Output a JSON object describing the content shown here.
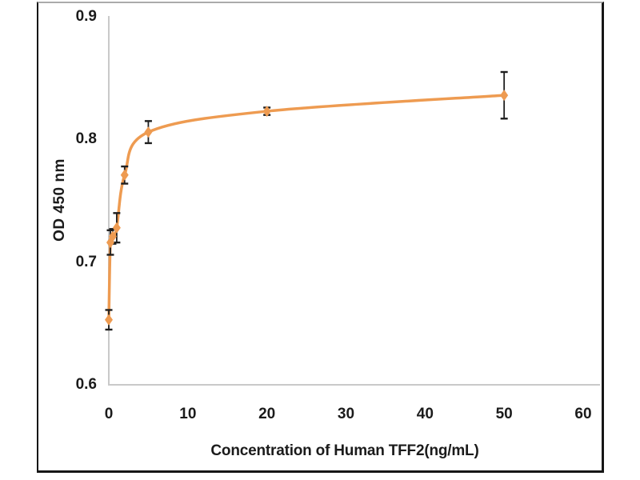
{
  "figure": {
    "description": "Sandwich ELISA standard curve plot for Human TFF2",
    "background": "#ffffff"
  },
  "chart_data": {
    "type": "line",
    "subtype": "smooth-line-with-diamond-markers-and-error-bars",
    "title": "",
    "xlabel": "Concentration of Human TFF2(ng/mL)",
    "ylabel": "OD 450 nm",
    "xlim": [
      0,
      60
    ],
    "ylim": [
      0.6,
      0.9
    ],
    "x_ticks": [
      "0",
      "10",
      "20",
      "30",
      "40",
      "50",
      "60"
    ],
    "y_ticks": [
      "0.6",
      "0.7",
      "0.8",
      "0.9"
    ],
    "grid": false,
    "legend_position": "none",
    "marker": "diamond",
    "series": [
      {
        "name": "Human TFF2",
        "color": "#ee9b51",
        "points": [
          {
            "x": 0,
            "y": 0.653,
            "yerr": 0.008
          },
          {
            "x": 0.2,
            "y": 0.716,
            "yerr": 0.01
          },
          {
            "x": 0.5,
            "y": 0.721,
            "yerr": 0.006
          },
          {
            "x": 1,
            "y": 0.728,
            "yerr": 0.012
          },
          {
            "x": 2,
            "y": 0.771,
            "yerr": 0.007
          },
          {
            "x": 5,
            "y": 0.806,
            "yerr": 0.009
          },
          {
            "x": 20,
            "y": 0.823,
            "yerr": 0.003
          },
          {
            "x": 50,
            "y": 0.836,
            "yerr": 0.019
          }
        ]
      }
    ],
    "colors": {
      "series_line": "#ee9b51",
      "marker_fill": "#ee9b51",
      "error_bar": "#1f1f1f",
      "axis_line": "#c9c9c9",
      "label_text": "#1b1b1b",
      "frame_border": "#161616",
      "frame_top_border": "#ababab",
      "background": "#ffffff"
    }
  }
}
